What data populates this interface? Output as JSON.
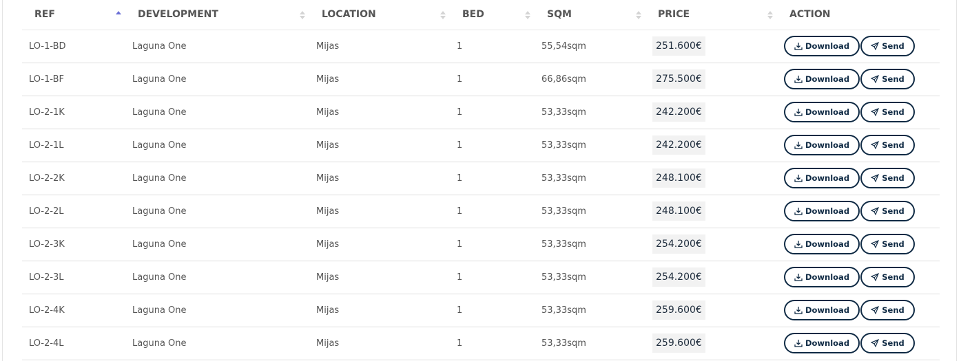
{
  "columns": [
    {
      "label": "REF",
      "sort": "asc"
    },
    {
      "label": "DEVELOPMENT",
      "sort": "none"
    },
    {
      "label": "LOCATION",
      "sort": "none"
    },
    {
      "label": "BED",
      "sort": "none"
    },
    {
      "label": "SQM",
      "sort": "none"
    },
    {
      "label": "PRICE",
      "sort": "none"
    },
    {
      "label": "ACTION"
    }
  ],
  "actions": {
    "download": "Download",
    "send": "Send"
  },
  "colors": {
    "accent": "#0f2a44",
    "sort_active": "#6b6fd6"
  },
  "rows": [
    [
      "LO-1-BD",
      "Laguna One",
      "Mijas",
      "1",
      "55,54sqm",
      "251.600€"
    ],
    [
      "LO-1-BF",
      "Laguna One",
      "Mijas",
      "1",
      "66,86sqm",
      "275.500€"
    ],
    [
      "LO-2-1K",
      "Laguna One",
      "Mijas",
      "1",
      "53,33sqm",
      "242.200€"
    ],
    [
      "LO-2-1L",
      "Laguna One",
      "Mijas",
      "1",
      "53,33sqm",
      "242.200€"
    ],
    [
      "LO-2-2K",
      "Laguna One",
      "Mijas",
      "1",
      "53,33sqm",
      "248.100€"
    ],
    [
      "LO-2-2L",
      "Laguna One",
      "Mijas",
      "1",
      "53,33sqm",
      "248.100€"
    ],
    [
      "LO-2-3K",
      "Laguna One",
      "Mijas",
      "1",
      "53,33sqm",
      "254.200€"
    ],
    [
      "LO-2-3L",
      "Laguna One",
      "Mijas",
      "1",
      "53,33sqm",
      "254.200€"
    ],
    [
      "LO-2-4K",
      "Laguna One",
      "Mijas",
      "1",
      "53,33sqm",
      "259.600€"
    ],
    [
      "LO-2-4L",
      "Laguna One",
      "Mijas",
      "1",
      "53,33sqm",
      "259.600€"
    ]
  ]
}
